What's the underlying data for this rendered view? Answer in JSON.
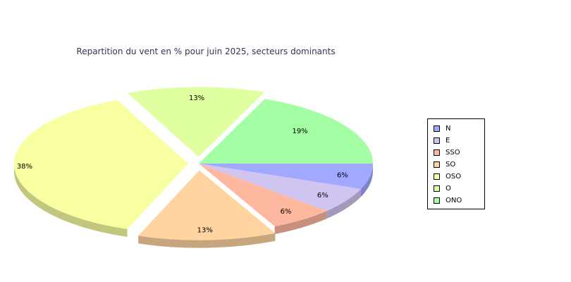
{
  "chart_data": {
    "type": "pie",
    "title": "Repartition du vent en % pour juin 2025, secteurs dominants",
    "categories": [
      "N",
      "E",
      "SSO",
      "SO",
      "OSO",
      "O",
      "ONO"
    ],
    "values": [
      6,
      6,
      6,
      13,
      38,
      13,
      19
    ],
    "data_labels": [
      "6%",
      "6%",
      "6%",
      "13%",
      "38%",
      "13%",
      "19%"
    ],
    "colors": [
      "#a0a8ff",
      "#d0c4f0",
      "#ffb8a0",
      "#ffd4a0",
      "#f8ffa0",
      "#e0ffa0",
      "#a4ffa4"
    ],
    "exploded": [
      "OSO",
      "O",
      "SO"
    ],
    "legend_position": "right",
    "three_d": true
  }
}
